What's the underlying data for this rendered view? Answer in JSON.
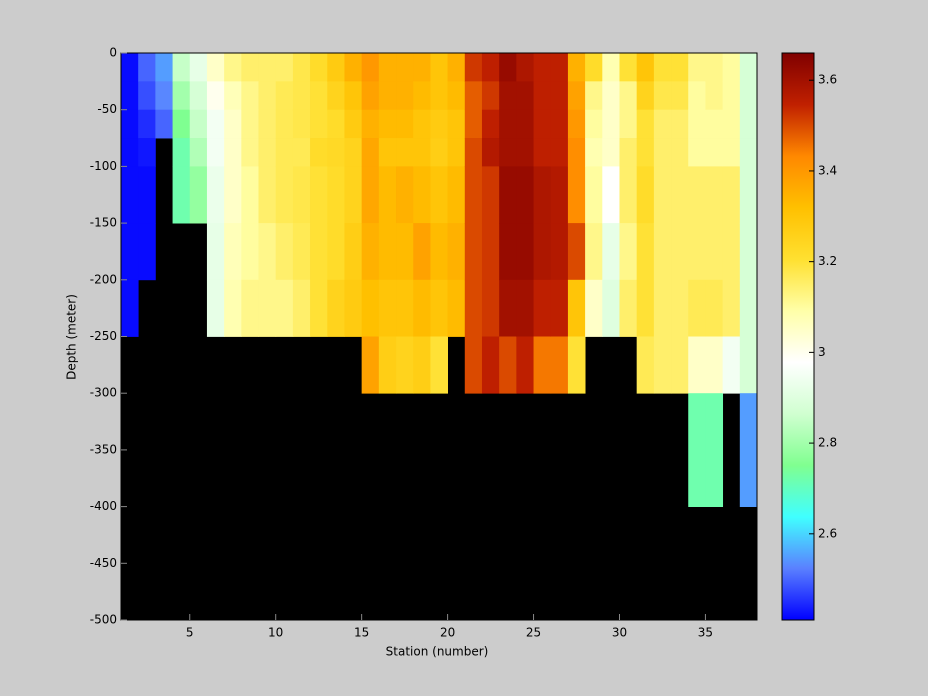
{
  "chart_data": {
    "type": "heatmap",
    "xlabel": "Station (number)",
    "ylabel": "Depth (meter)",
    "xlim": [
      1,
      38
    ],
    "xticks": [
      5,
      10,
      15,
      20,
      25,
      30,
      35
    ],
    "ylim": [
      -500,
      0
    ],
    "yticks": [
      0,
      -50,
      -100,
      -150,
      -200,
      -250,
      -300,
      -350,
      -400,
      -450,
      -500
    ],
    "x_edges": [
      1,
      2,
      3,
      4,
      5,
      6,
      7,
      8,
      9,
      10,
      11,
      12,
      13,
      14,
      15,
      16,
      17,
      18,
      19,
      20,
      21,
      22,
      23,
      24,
      25,
      26,
      27,
      28,
      29,
      30,
      31,
      32,
      33,
      34,
      35,
      36,
      37,
      38
    ],
    "y_edges": [
      0,
      -25,
      -50,
      -75,
      -100,
      -150,
      -200,
      -250,
      -300,
      -400
    ],
    "values": [
      [
        2.42,
        2.42,
        2.42,
        2.42,
        2.42,
        2.42,
        2.42,
        null,
        null
      ],
      [
        2.5,
        2.48,
        2.45,
        2.43,
        2.42,
        2.42,
        null,
        null,
        null
      ],
      [
        2.55,
        2.53,
        2.5,
        null,
        null,
        null,
        null,
        null,
        null
      ],
      [
        2.85,
        2.8,
        2.75,
        2.72,
        2.72,
        null,
        null,
        null,
        null
      ],
      [
        2.92,
        2.88,
        2.85,
        2.82,
        2.78,
        null,
        null,
        null,
        null
      ],
      [
        3.05,
        3.0,
        2.95,
        2.95,
        2.93,
        2.92,
        2.92,
        null,
        null
      ],
      [
        3.12,
        3.07,
        3.05,
        3.05,
        3.05,
        3.07,
        3.08,
        null,
        null
      ],
      [
        3.15,
        3.12,
        3.12,
        3.12,
        3.1,
        3.1,
        3.12,
        null,
        null
      ],
      [
        3.15,
        3.15,
        3.15,
        3.15,
        3.15,
        3.12,
        3.12,
        null,
        null
      ],
      [
        3.15,
        3.17,
        3.17,
        3.17,
        3.17,
        3.15,
        3.12,
        null,
        null
      ],
      [
        3.18,
        3.18,
        3.18,
        3.17,
        3.18,
        3.17,
        3.15,
        null,
        null
      ],
      [
        3.22,
        3.2,
        3.2,
        3.22,
        3.2,
        3.2,
        3.2,
        null,
        null
      ],
      [
        3.28,
        3.25,
        3.22,
        3.23,
        3.22,
        3.22,
        3.25,
        null,
        null
      ],
      [
        3.35,
        3.3,
        3.28,
        3.25,
        3.25,
        3.27,
        3.28,
        null,
        null
      ],
      [
        3.4,
        3.38,
        3.35,
        3.37,
        3.37,
        3.35,
        3.32,
        3.38,
        null
      ],
      [
        3.35,
        3.35,
        3.33,
        3.3,
        3.33,
        3.33,
        3.3,
        3.27,
        null
      ],
      [
        3.35,
        3.35,
        3.33,
        3.3,
        3.35,
        3.33,
        3.3,
        3.25,
        null
      ],
      [
        3.35,
        3.33,
        3.3,
        3.3,
        3.33,
        3.38,
        3.33,
        3.27,
        null
      ],
      [
        3.3,
        3.3,
        3.28,
        3.27,
        3.3,
        3.33,
        3.3,
        3.2,
        null
      ],
      [
        3.35,
        3.33,
        3.3,
        3.3,
        3.33,
        3.35,
        3.33,
        null,
        null
      ],
      [
        3.52,
        3.48,
        3.48,
        3.5,
        3.5,
        3.5,
        3.5,
        3.5,
        null
      ],
      [
        3.55,
        3.52,
        3.55,
        3.57,
        3.52,
        3.52,
        3.52,
        3.55,
        null
      ],
      [
        3.62,
        3.6,
        3.6,
        3.6,
        3.62,
        3.62,
        3.6,
        3.5,
        null
      ],
      [
        3.58,
        3.6,
        3.6,
        3.6,
        3.62,
        3.62,
        3.6,
        3.55,
        null
      ],
      [
        3.55,
        3.55,
        3.55,
        3.55,
        3.58,
        3.58,
        3.55,
        3.45,
        null
      ],
      [
        3.55,
        3.55,
        3.55,
        3.55,
        3.57,
        3.57,
        3.55,
        3.45,
        null
      ],
      [
        3.35,
        3.38,
        3.4,
        3.42,
        3.42,
        3.5,
        3.3,
        3.2,
        null
      ],
      [
        3.22,
        3.12,
        3.1,
        3.08,
        3.1,
        3.12,
        3.05,
        null,
        null
      ],
      [
        3.08,
        3.05,
        3.05,
        3.05,
        2.98,
        2.92,
        2.9,
        null,
        null
      ],
      [
        3.2,
        3.12,
        3.12,
        3.15,
        3.15,
        3.12,
        3.15,
        null,
        null
      ],
      [
        3.3,
        3.25,
        3.2,
        3.2,
        3.22,
        3.2,
        3.2,
        3.17,
        null
      ],
      [
        3.2,
        3.18,
        3.15,
        3.15,
        3.15,
        3.15,
        3.15,
        3.15,
        null
      ],
      [
        3.2,
        3.18,
        3.15,
        3.15,
        3.15,
        3.15,
        3.15,
        3.15,
        null
      ],
      [
        3.12,
        3.1,
        3.1,
        3.1,
        3.15,
        3.15,
        3.17,
        3.05,
        2.72
      ],
      [
        3.12,
        3.12,
        3.1,
        3.1,
        3.15,
        3.15,
        3.17,
        3.05,
        2.72
      ],
      [
        3.1,
        3.1,
        3.1,
        3.1,
        3.15,
        3.15,
        3.15,
        2.95,
        null
      ],
      [
        2.88,
        2.88,
        2.88,
        2.88,
        2.88,
        2.88,
        2.88,
        2.88,
        2.55
      ]
    ],
    "clim": [
      2.41,
      3.66
    ],
    "cticks": [
      2.6,
      2.8,
      3,
      3.2,
      3.4,
      3.6
    ],
    "colormap": [
      "#0000ff",
      "#5a80ff",
      "#40ffff",
      "#80ff90",
      "#d0ffd0",
      "#ffffff",
      "#ffffa8",
      "#ffe030",
      "#ffc000",
      "#ff8800",
      "#c02000",
      "#800000"
    ],
    "missing_color": "#000000"
  }
}
